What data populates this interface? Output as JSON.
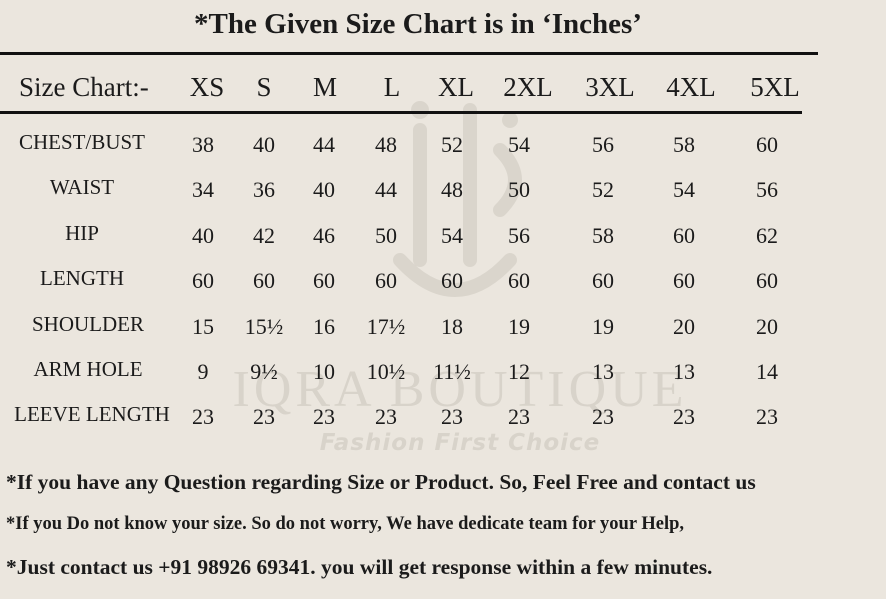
{
  "title": "*The Given Size Chart is in ‘Inches’",
  "header": {
    "label": "Size Chart:-",
    "sizes": [
      "XS",
      "S",
      "M",
      "L",
      "XL",
      "2XL",
      "3XL",
      "4XL",
      "5XL"
    ]
  },
  "rows": [
    {
      "label": "CHEST/BUST",
      "values": [
        "38",
        "40",
        "44",
        "48",
        "52",
        "54",
        "56",
        "58",
        "60"
      ]
    },
    {
      "label": "WAIST",
      "values": [
        "34",
        "36",
        "40",
        "44",
        "48",
        "50",
        "52",
        "54",
        "56"
      ]
    },
    {
      "label": "HIP",
      "values": [
        "40",
        "42",
        "46",
        "50",
        "54",
        "56",
        "58",
        "60",
        "62"
      ]
    },
    {
      "label": "LENGTH",
      "values": [
        "60",
        "60",
        "60",
        "60",
        "60",
        "60",
        "60",
        "60",
        "60"
      ]
    },
    {
      "label": "SHOULDER",
      "values": [
        "15",
        "15½",
        "16",
        "17½",
        "18",
        "19",
        "19",
        "20",
        "20"
      ]
    },
    {
      "label": "ARM HOLE",
      "values": [
        "9",
        "9½",
        "10",
        "10½",
        "11½",
        "12",
        "13",
        "13",
        "14"
      ]
    },
    {
      "label": "LEEVE LENGTH",
      "values": [
        "23",
        "23",
        "23",
        "23",
        "23",
        "23",
        "23",
        "23",
        "23"
      ]
    }
  ],
  "watermark": {
    "brand": "IQRA BOUTIQUE",
    "tagline": "Fashion First Choice"
  },
  "notes": [
    "*If you have any Question regarding Size or Product. So, Feel Free and contact us",
    "*If you Do not know your size. So do not worry, We have dedicate team for your Help,",
    "*Just contact us +91 98926 69341. you will get response within a few minutes."
  ]
}
